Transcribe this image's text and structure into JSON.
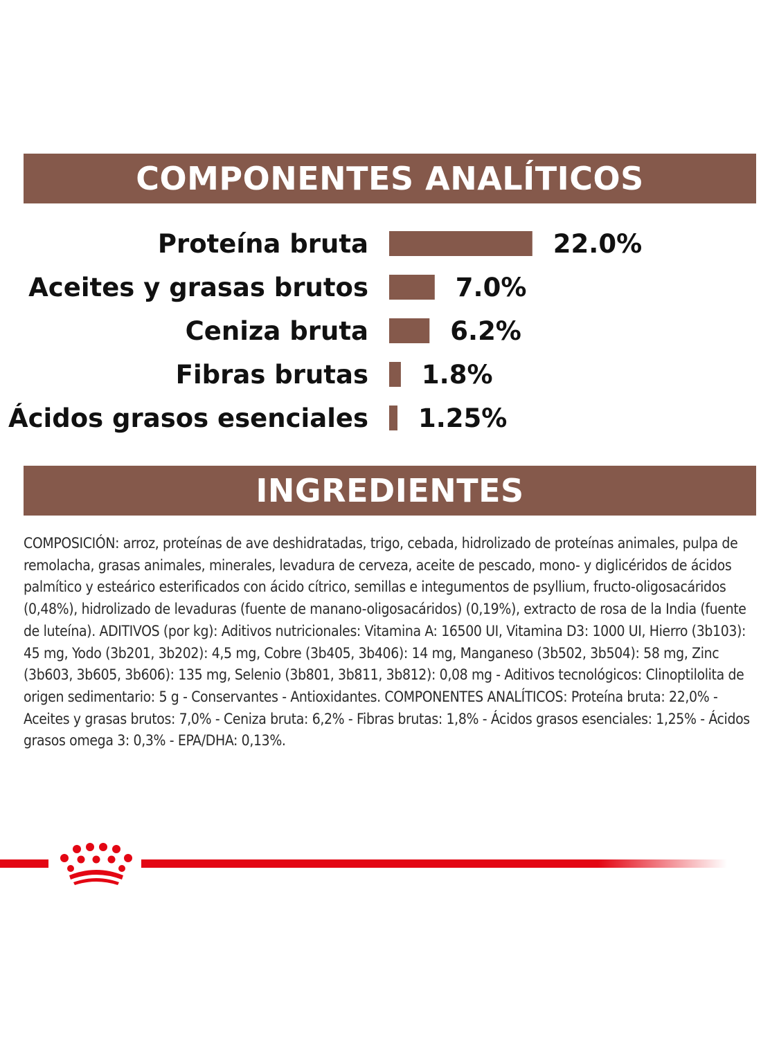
{
  "sections": {
    "analytical_title": "COMPONENTES ANALÍTICOS",
    "ingredients_title": "INGREDIENTES"
  },
  "chart_data": {
    "type": "bar",
    "orientation": "horizontal",
    "categories": [
      "Proteína bruta",
      "Aceites y grasas brutos",
      "Ceniza bruta",
      "Fibras brutas",
      "Ácidos grasos esenciales"
    ],
    "values": [
      22.0,
      7.0,
      6.2,
      1.8,
      1.25
    ],
    "value_labels": [
      "22.0%",
      "7.0%",
      "6.2%",
      "1.8%",
      "1.25%"
    ],
    "unit": "%",
    "bar_color": "#85594b",
    "grid": false,
    "legend": "none"
  },
  "ingredients_text": "COMPOSICIÓN: arroz, proteínas de ave deshidratadas, trigo, cebada, hidrolizado de proteínas animales, pulpa de remolacha, grasas animales, minerales, levadura de cerveza, aceite de pescado, mono- y diglicéridos de ácidos palmítico y esteárico esterificados con ácido cítrico, semillas e integumentos de psyllium, fructo-oligosacáridos (0,48%), hidrolizado de levaduras (fuente de manano-oligosacáridos) (0,19%), extracto de rosa de la India (fuente de luteína). ADITIVOS (por kg): Aditivos nutricionales: Vitamina A: 16500 UI, Vitamina D3: 1000 UI, Hierro (3b103): 45 mg, Yodo (3b201, 3b202): 4,5 mg, Cobre (3b405, 3b406): 14 mg, Manganeso (3b502, 3b504): 58 mg, Zinc (3b603, 3b605, 3b606): 135 mg, Selenio (3b801, 3b811, 3b812): 0,08 mg - Aditivos tecnológicos: Clinoptilolita de origen sedimentario: 5 g - Conservantes - Antioxidantes. COMPONENTES ANALÍTICOS: Proteína bruta: 22,0% - Aceites y grasas brutos: 7,0% - Ceniza bruta: 6,2% - Fibras brutas: 1,8% - Ácidos grasos esenciales: 1,25% - Ácidos grasos omega 3: 0,3% - EPA/DHA: 0,13%.",
  "brand": {
    "logo_icon": "crown-icon",
    "accent_color": "#e30613"
  }
}
